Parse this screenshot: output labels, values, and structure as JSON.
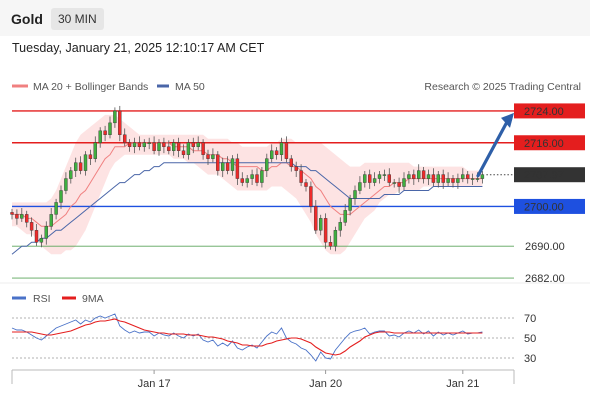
{
  "header": {
    "instrument": "Gold",
    "timeframe": "30 MIN",
    "datetime": "Tuesday, January 21, 2025 12:10:17 AM CET"
  },
  "colors": {
    "bull": "#3fae3f",
    "bear": "#ee2a2a",
    "ma20": "#f08080",
    "band_fill": "#fcd9d9",
    "ma50": "#4a66a8",
    "resistance": "#e41e1e",
    "support": "#1e50e0",
    "target": "#5aa55a",
    "arrow": "#2e5fa8",
    "rsi": "#4a72c8",
    "rsi_ma": "#e41e1e",
    "current": "#333333"
  },
  "chart_data": [
    {
      "type": "candlestick",
      "title": "Gold 30 MIN",
      "legend": [
        {
          "label": "MA 20 + Bollinger Bands",
          "color": "#f08080"
        },
        {
          "label": "MA 50",
          "color": "#4a66a8"
        }
      ],
      "watermark": "Research © 2025 Trading Central",
      "ylim": [
        2679,
        2728
      ],
      "x_ticks": [
        {
          "label": "Jan 17",
          "index": 29
        },
        {
          "label": "Jan 20",
          "index": 64
        },
        {
          "label": "Jan 21",
          "index": 92
        }
      ],
      "levels": [
        {
          "label": "2724.00",
          "value": 2724.0,
          "kind": "resistance"
        },
        {
          "label": "2716.00",
          "value": 2716.0,
          "kind": "resistance"
        },
        {
          "label": "2707.97",
          "value": 2707.97,
          "kind": "current"
        },
        {
          "label": "2700.00",
          "value": 2700.0,
          "kind": "support"
        },
        {
          "label": "2690.00",
          "value": 2690.0,
          "kind": "target"
        },
        {
          "label": "2682.00",
          "value": 2682.0,
          "kind": "target"
        }
      ],
      "forecast_arrow": {
        "from": 2707.97,
        "to": 2724.0
      },
      "close": [
        2698,
        2697,
        2698,
        2696,
        2694,
        2691,
        2692,
        2695,
        2698,
        2701,
        2704,
        2707,
        2709,
        2711,
        2709,
        2713,
        2712,
        2716,
        2719,
        2718,
        2721,
        2724,
        2718,
        2716,
        2715,
        2716,
        2715,
        2716,
        2716,
        2714,
        2716,
        2715,
        2714,
        2716,
        2714,
        2713,
        2716,
        2715,
        2716,
        2713,
        2712,
        2713,
        2709,
        2711,
        2709,
        2712,
        2707,
        2706,
        2707,
        2708,
        2706,
        2709,
        2712,
        2714,
        2713,
        2716,
        2712,
        2710,
        2709,
        2706,
        2705,
        2700,
        2694,
        2697,
        2691,
        2690,
        2694,
        2696,
        2699,
        2702,
        2704,
        2706,
        2708,
        2706,
        2707,
        2708,
        2708,
        2706,
        2706,
        2705,
        2707,
        2708,
        2707,
        2709,
        2707,
        2708,
        2706,
        2708,
        2706,
        2707,
        2706,
        2707,
        2708,
        2707,
        2707,
        2707,
        2708
      ],
      "ma20": [
        2698,
        2698,
        2698,
        2697,
        2697,
        2696,
        2695,
        2695,
        2695,
        2696,
        2697,
        2698,
        2700,
        2701,
        2703,
        2704,
        2706,
        2708,
        2710,
        2712,
        2713,
        2715,
        2715,
        2715,
        2716,
        2716,
        2716,
        2716,
        2716,
        2716,
        2716,
        2716,
        2716,
        2715,
        2715,
        2715,
        2715,
        2714,
        2714,
        2714,
        2713,
        2713,
        2713,
        2712,
        2712,
        2711,
        2710,
        2710,
        2710,
        2710,
        2710,
        2709,
        2709,
        2710,
        2710,
        2711,
        2711,
        2710,
        2710,
        2709,
        2708,
        2707,
        2705,
        2704,
        2702,
        2700,
        2699,
        2698,
        2698,
        2698,
        2699,
        2700,
        2701,
        2702,
        2703,
        2704,
        2705,
        2705,
        2706,
        2706,
        2706,
        2707,
        2707,
        2707,
        2707,
        2707,
        2707,
        2707,
        2707,
        2707,
        2707,
        2707,
        2707,
        2707,
        2707,
        2707,
        2707
      ],
      "bb_upper": [
        2701,
        2701,
        2701,
        2701,
        2701,
        2701,
        2701,
        2701,
        2702,
        2704,
        2707,
        2710,
        2713,
        2716,
        2718,
        2719,
        2720,
        2721,
        2722,
        2723,
        2723,
        2723,
        2722,
        2721,
        2720,
        2719,
        2718,
        2718,
        2718,
        2718,
        2718,
        2718,
        2718,
        2718,
        2718,
        2718,
        2718,
        2718,
        2718,
        2718,
        2717,
        2717,
        2717,
        2717,
        2717,
        2716,
        2716,
        2715,
        2715,
        2715,
        2715,
        2715,
        2715,
        2716,
        2716,
        2717,
        2717,
        2717,
        2716,
        2716,
        2716,
        2716,
        2716,
        2716,
        2715,
        2714,
        2713,
        2712,
        2711,
        2710,
        2710,
        2710,
        2711,
        2711,
        2711,
        2711,
        2711,
        2711,
        2711,
        2711,
        2711,
        2711,
        2710,
        2710,
        2710,
        2710,
        2710,
        2710,
        2710,
        2710,
        2710,
        2710,
        2710,
        2709,
        2709,
        2709,
        2709
      ],
      "bb_lower": [
        2695,
        2695,
        2694,
        2693,
        2693,
        2692,
        2690,
        2689,
        2688,
        2688,
        2688,
        2689,
        2689,
        2690,
        2692,
        2694,
        2697,
        2700,
        2703,
        2706,
        2709,
        2711,
        2712,
        2713,
        2713,
        2713,
        2713,
        2713,
        2713,
        2713,
        2713,
        2713,
        2713,
        2712,
        2712,
        2712,
        2711,
        2711,
        2710,
        2709,
        2708,
        2708,
        2708,
        2707,
        2706,
        2705,
        2704,
        2704,
        2704,
        2704,
        2704,
        2704,
        2704,
        2705,
        2705,
        2705,
        2704,
        2703,
        2702,
        2700,
        2698,
        2696,
        2693,
        2691,
        2689,
        2688,
        2688,
        2688,
        2689,
        2691,
        2693,
        2695,
        2697,
        2698,
        2699,
        2701,
        2702,
        2703,
        2703,
        2704,
        2704,
        2704,
        2704,
        2704,
        2705,
        2705,
        2705,
        2705,
        2705,
        2705,
        2705,
        2705,
        2705,
        2705,
        2705,
        2705,
        2705
      ],
      "ma50": [
        2688,
        2689,
        2690,
        2690,
        2691,
        2691,
        2692,
        2692,
        2693,
        2694,
        2694,
        2695,
        2696,
        2697,
        2698,
        2699,
        2700,
        2701,
        2702,
        2703,
        2704,
        2705,
        2706,
        2706,
        2707,
        2708,
        2708,
        2709,
        2709,
        2710,
        2710,
        2711,
        2711,
        2711,
        2711,
        2711,
        2711,
        2711,
        2711,
        2711,
        2711,
        2711,
        2711,
        2711,
        2711,
        2711,
        2711,
        2711,
        2711,
        2711,
        2711,
        2711,
        2711,
        2711,
        2711,
        2711,
        2711,
        2711,
        2710,
        2710,
        2710,
        2709,
        2709,
        2708,
        2707,
        2706,
        2705,
        2704,
        2703,
        2702,
        2702,
        2702,
        2702,
        2702,
        2702,
        2702,
        2703,
        2703,
        2703,
        2703,
        2704,
        2704,
        2704,
        2704,
        2704,
        2704,
        2705,
        2705,
        2705,
        2705,
        2705,
        2705,
        2705,
        2705,
        2705,
        2705,
        2705
      ]
    },
    {
      "type": "line",
      "title": "RSI",
      "legend": [
        {
          "label": "RSI",
          "color": "#4a72c8"
        },
        {
          "label": "9MA",
          "color": "#e41e1e"
        }
      ],
      "ylim": [
        20,
        80
      ],
      "y_ticks": [
        70,
        50,
        30
      ],
      "reference_lines": [
        70,
        50,
        30
      ],
      "series": [
        {
          "name": "RSI",
          "values": [
            60,
            58,
            58,
            56,
            53,
            50,
            48,
            52,
            56,
            60,
            62,
            64,
            66,
            68,
            64,
            68,
            66,
            70,
            72,
            70,
            72,
            74,
            62,
            58,
            55,
            57,
            55,
            56,
            56,
            52,
            55,
            53,
            52,
            55,
            52,
            50,
            54,
            52,
            54,
            48,
            46,
            48,
            42,
            45,
            42,
            47,
            40,
            38,
            41,
            43,
            40,
            46,
            52,
            56,
            54,
            60,
            50,
            46,
            44,
            40,
            38,
            33,
            27,
            36,
            30,
            29,
            38,
            44,
            50,
            55,
            57,
            58,
            60,
            54,
            56,
            57,
            57,
            52,
            53,
            51,
            55,
            57,
            55,
            58,
            54,
            57,
            52,
            56,
            53,
            55,
            53,
            55,
            57,
            54,
            55,
            55,
            56
          ]
        },
        {
          "name": "9MA",
          "values": [
            56,
            56,
            56,
            56,
            56,
            55,
            54,
            53,
            53,
            54,
            55,
            56,
            57,
            59,
            61,
            63,
            64,
            66,
            67,
            67,
            68,
            69,
            67,
            66,
            64,
            62,
            60,
            58,
            57,
            56,
            55,
            55,
            54,
            54,
            54,
            54,
            53,
            53,
            53,
            52,
            51,
            51,
            50,
            49,
            47,
            46,
            45,
            43,
            43,
            42,
            42,
            42,
            44,
            45,
            47,
            48,
            49,
            50,
            50,
            49,
            47,
            45,
            41,
            38,
            35,
            34,
            33,
            34,
            37,
            41,
            44,
            47,
            51,
            53,
            55,
            56,
            56,
            56,
            55,
            55,
            55,
            55,
            55,
            55,
            55,
            55,
            55,
            55,
            55,
            55,
            55,
            55,
            55,
            55,
            55,
            55,
            55
          ]
        }
      ]
    }
  ]
}
